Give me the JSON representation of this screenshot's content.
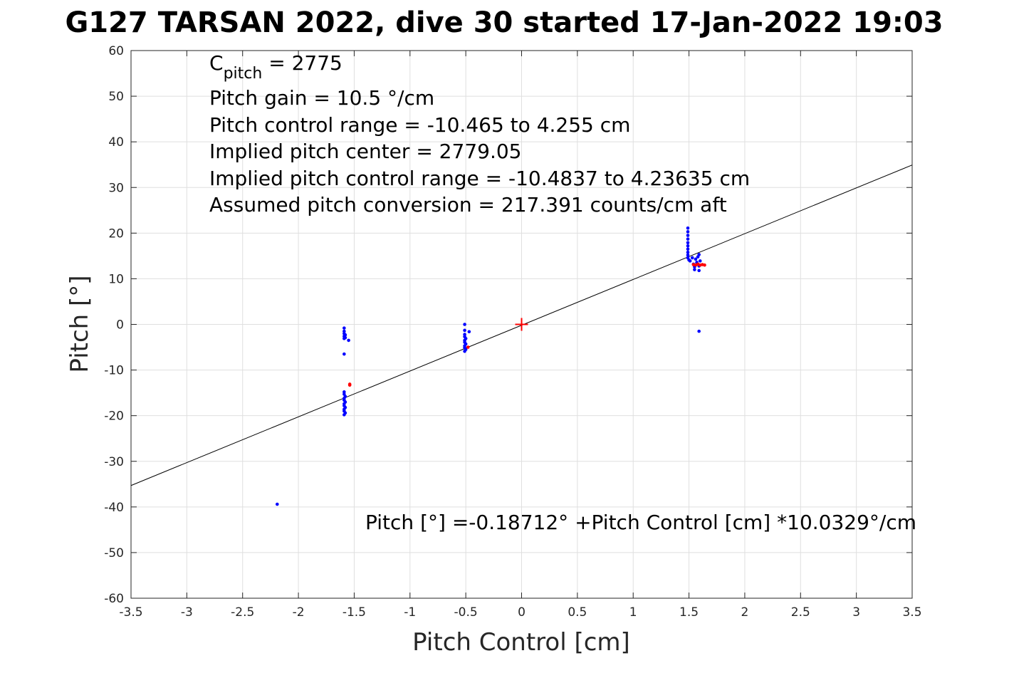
{
  "chart_data": {
    "type": "scatter",
    "title": "G127 TARSAN 2022, dive 30 started 17-Jan-2022 19:03",
    "xlabel": "Pitch Control [cm]",
    "ylabel": "Pitch [°]",
    "xlim": [
      -3.5,
      3.5
    ],
    "ylim": [
      -60,
      60
    ],
    "xticks": [
      -3.5,
      -3,
      -2.5,
      -2,
      -1.5,
      -1,
      -0.5,
      0,
      0.5,
      1,
      1.5,
      2,
      2.5,
      3,
      3.5
    ],
    "xtick_labels": [
      "-3.5",
      "-3",
      "-2.5",
      "-2",
      "-1.5",
      "-1",
      "-0.5",
      "0",
      "0.5",
      "1",
      "1.5",
      "2",
      "2.5",
      "3",
      "3.5"
    ],
    "yticks": [
      -60,
      -50,
      -40,
      -30,
      -20,
      -10,
      0,
      10,
      20,
      30,
      40,
      50,
      60
    ],
    "ytick_labels": [
      "-60",
      "-50",
      "-40",
      "-30",
      "-20",
      "-10",
      "0",
      "10",
      "20",
      "30",
      "40",
      "50",
      "60"
    ],
    "grid": true,
    "annotations": {
      "c_pitch_main": "C",
      "c_pitch_sub": "pitch",
      "c_pitch_value": " = 2775",
      "lines": [
        "Pitch gain = 10.5 °/cm",
        "Pitch control range = -10.465 to 4.255 cm",
        "Implied pitch center = 2779.05",
        "Implied pitch control range = -10.4837 to 4.23635 cm",
        "Assumed pitch conversion = 217.391 counts/cm aft"
      ],
      "fit_equation": "Pitch [°] =-0.18712° +Pitch Control [cm] *10.0329°/cm"
    },
    "fit_line": {
      "intercept": -0.18712,
      "slope": 10.0329,
      "color": "#000000"
    },
    "center_marker": {
      "x": 0,
      "y": 0,
      "color": "#ff0000"
    },
    "series": [
      {
        "color": "#0000ff",
        "points": [
          [
            -2.19,
            -39.4
          ],
          [
            -1.59,
            -0.8
          ],
          [
            -1.59,
            -1.5
          ],
          [
            -1.59,
            -2.0
          ],
          [
            -1.58,
            -2.3
          ],
          [
            -1.59,
            -2.6
          ],
          [
            -1.58,
            -2.9
          ],
          [
            -1.59,
            -3.1
          ],
          [
            -1.55,
            -3.5
          ],
          [
            -1.59,
            -6.5
          ],
          [
            -1.59,
            -14.8
          ],
          [
            -1.59,
            -15.3
          ],
          [
            -1.58,
            -15.8
          ],
          [
            -1.59,
            -16.2
          ],
          [
            -1.59,
            -16.6
          ],
          [
            -1.58,
            -17.0
          ],
          [
            -1.59,
            -17.4
          ],
          [
            -1.59,
            -17.8
          ],
          [
            -1.58,
            -18.2
          ],
          [
            -1.59,
            -18.6
          ],
          [
            -1.59,
            -19.0
          ],
          [
            -1.58,
            -19.4
          ],
          [
            -1.59,
            -19.8
          ],
          [
            -0.51,
            0.0
          ],
          [
            -0.51,
            -1.3
          ],
          [
            -0.47,
            -1.6
          ],
          [
            -0.51,
            -2.2
          ],
          [
            -0.51,
            -2.7
          ],
          [
            -0.5,
            -3.1
          ],
          [
            -0.51,
            -3.5
          ],
          [
            -0.51,
            -3.9
          ],
          [
            -0.5,
            -4.3
          ],
          [
            -0.51,
            -4.7
          ],
          [
            -0.51,
            -5.1
          ],
          [
            -0.5,
            -5.5
          ],
          [
            -0.51,
            -5.9
          ],
          [
            1.49,
            21.1
          ],
          [
            1.49,
            20.3
          ],
          [
            1.49,
            19.5
          ],
          [
            1.49,
            18.7
          ],
          [
            1.49,
            17.9
          ],
          [
            1.49,
            17.2
          ],
          [
            1.49,
            16.5
          ],
          [
            1.49,
            15.8
          ],
          [
            1.49,
            15.2
          ],
          [
            1.49,
            14.6
          ],
          [
            1.5,
            14.1
          ],
          [
            1.51,
            13.9
          ],
          [
            1.53,
            14.6
          ],
          [
            1.54,
            13.2
          ],
          [
            1.55,
            12.6
          ],
          [
            1.55,
            12.0
          ],
          [
            1.56,
            14.3
          ],
          [
            1.57,
            13.6
          ],
          [
            1.58,
            14.8
          ],
          [
            1.59,
            15.3
          ],
          [
            1.59,
            12.8
          ],
          [
            1.59,
            11.8
          ],
          [
            1.6,
            13.9
          ],
          [
            1.59,
            -1.5
          ]
        ]
      },
      {
        "color": "#ff0000",
        "points": [
          [
            -1.54,
            -13.1
          ],
          [
            -1.54,
            -13.3
          ],
          [
            -0.48,
            -5.0
          ],
          [
            1.54,
            13.1
          ],
          [
            1.56,
            13.0
          ],
          [
            1.58,
            13.2
          ],
          [
            1.6,
            13.0
          ],
          [
            1.62,
            13.1
          ],
          [
            1.64,
            13.0
          ]
        ]
      }
    ]
  }
}
